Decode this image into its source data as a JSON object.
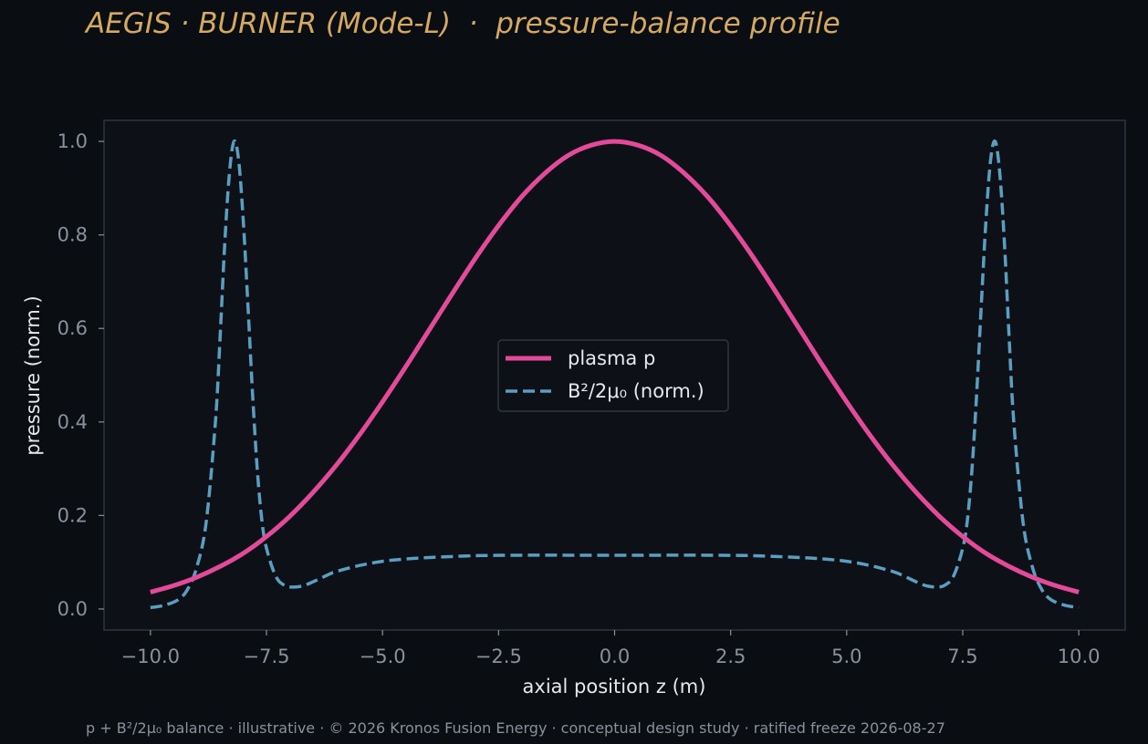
{
  "header": {
    "title": "AEGIS · BURNER (Mode-L)  ·  pressure-balance profile"
  },
  "footer": {
    "text": "p + B²/2μ₀ balance · illustrative · © 2026 Kronos Fusion Energy · conceptual design study · ratified freeze 2026-08-27"
  },
  "colors": {
    "background": "#0a0d12",
    "plot_background": "#0d1017",
    "plot_border": "#30353f",
    "title": "#d4a962",
    "plasma": "#e34b9a",
    "magnetic": "#5a9ec0"
  },
  "chart_data": {
    "type": "line",
    "xlabel": "axial position z (m)",
    "ylabel": "pressure (norm.)",
    "xlim": [
      -11.0,
      11.0
    ],
    "ylim": [
      -0.045,
      1.045
    ],
    "xticks": [
      -10.0,
      -7.5,
      -5.0,
      -2.5,
      0.0,
      2.5,
      5.0,
      7.5,
      10.0
    ],
    "xtick_labels": [
      "−10.0",
      "−7.5",
      "−5.0",
      "−2.5",
      "0.0",
      "2.5",
      "5.0",
      "7.5",
      "10.0"
    ],
    "yticks": [
      0.0,
      0.2,
      0.4,
      0.6,
      0.8,
      1.0
    ],
    "ytick_labels": [
      "0.0",
      "0.2",
      "0.4",
      "0.6",
      "0.8",
      "1.0"
    ],
    "grid": false,
    "legend_position": "center",
    "series": [
      {
        "name": "plasma p",
        "style": "solid",
        "color": "#e34b9a",
        "x": [
          -10,
          -9.5,
          -9,
          -8.5,
          -8,
          -7.5,
          -7,
          -6.5,
          -6,
          -5.5,
          -5,
          -4.5,
          -4,
          -3.5,
          -3,
          -2.5,
          -2,
          -1.5,
          -1,
          -0.5,
          0,
          0.5,
          1,
          1.5,
          2,
          2.5,
          3,
          3.5,
          4,
          4.5,
          5,
          5.5,
          6,
          6.5,
          7,
          7.5,
          8,
          8.5,
          9,
          9.5,
          10
        ],
        "y": [
          0.036,
          0.05,
          0.068,
          0.091,
          0.119,
          0.155,
          0.198,
          0.249,
          0.307,
          0.372,
          0.443,
          0.518,
          0.596,
          0.674,
          0.75,
          0.82,
          0.882,
          0.932,
          0.97,
          0.992,
          1.0,
          0.992,
          0.97,
          0.932,
          0.882,
          0.82,
          0.75,
          0.674,
          0.596,
          0.518,
          0.443,
          0.372,
          0.307,
          0.249,
          0.198,
          0.155,
          0.119,
          0.091,
          0.068,
          0.05,
          0.036
        ]
      },
      {
        "name": "B²/2μ₀ (norm.)",
        "style": "dashed",
        "color": "#5a9ec0",
        "x": [
          -10,
          -9.7,
          -9.4,
          -9.2,
          -9,
          -8.8,
          -8.6,
          -8.5,
          -8.4,
          -8.3,
          -8.2,
          -8.1,
          -8,
          -7.9,
          -7.8,
          -7.7,
          -7.6,
          -7.5,
          -7.3,
          -7.1,
          -6.9,
          -6.7,
          -6.5,
          -6.2,
          -6,
          -5.5,
          -5,
          -4.5,
          -4,
          -3,
          -2,
          -1,
          0,
          1,
          2,
          3,
          4,
          4.5,
          5,
          5.5,
          6,
          6.2,
          6.5,
          6.7,
          6.9,
          7.1,
          7.3,
          7.5,
          7.6,
          7.7,
          7.8,
          7.9,
          8,
          8.1,
          8.2,
          8.3,
          8.4,
          8.5,
          8.6,
          8.8,
          9,
          9.2,
          9.4,
          9.7,
          10
        ],
        "y": [
          0.003,
          0.008,
          0.02,
          0.042,
          0.09,
          0.185,
          0.4,
          0.58,
          0.78,
          0.93,
          1.0,
          0.96,
          0.83,
          0.65,
          0.46,
          0.3,
          0.19,
          0.13,
          0.07,
          0.05,
          0.047,
          0.05,
          0.058,
          0.072,
          0.08,
          0.093,
          0.102,
          0.107,
          0.11,
          0.114,
          0.115,
          0.115,
          0.115,
          0.115,
          0.115,
          0.114,
          0.11,
          0.107,
          0.102,
          0.093,
          0.08,
          0.072,
          0.058,
          0.05,
          0.047,
          0.05,
          0.07,
          0.13,
          0.19,
          0.3,
          0.46,
          0.65,
          0.83,
          0.96,
          1.0,
          0.93,
          0.78,
          0.58,
          0.4,
          0.185,
          0.09,
          0.042,
          0.02,
          0.008,
          0.003
        ]
      }
    ]
  }
}
